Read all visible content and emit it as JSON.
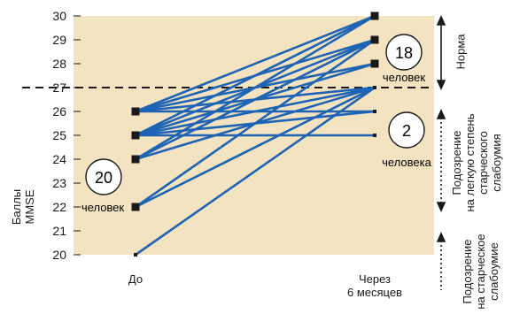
{
  "chart_data": {
    "type": "line",
    "ylabel": "Баллы MMSE",
    "ylim": [
      20,
      30
    ],
    "yticks": [
      20,
      21,
      22,
      23,
      24,
      25,
      26,
      27,
      28,
      29,
      30
    ],
    "categories": [
      "До",
      "Через\n6 месяцев"
    ],
    "threshold": 27,
    "series_color": "#1f64b4",
    "background_color": "#f3e3c1",
    "lines": [
      {
        "before": 26,
        "after": 30
      },
      {
        "before": 26,
        "after": 29
      },
      {
        "before": 26,
        "after": 28
      },
      {
        "before": 26,
        "after": 27
      },
      {
        "before": 26,
        "after": 26
      },
      {
        "before": 25,
        "after": 30
      },
      {
        "before": 25,
        "after": 29
      },
      {
        "before": 25,
        "after": 28
      },
      {
        "before": 25,
        "after": 27
      },
      {
        "before": 25,
        "after": 26
      },
      {
        "before": 25,
        "after": 25
      },
      {
        "before": 24,
        "after": 30
      },
      {
        "before": 24,
        "after": 29
      },
      {
        "before": 24,
        "after": 27
      },
      {
        "before": 22,
        "after": 29
      },
      {
        "before": 22,
        "after": 27
      },
      {
        "before": 20,
        "after": 27
      }
    ],
    "before_markers": [
      26,
      25,
      24,
      22,
      20
    ],
    "after_markers": [
      30,
      29,
      28,
      27,
      26,
      25
    ]
  },
  "annotations": {
    "before_count": {
      "number": "20",
      "unit": "человек"
    },
    "after_normal": {
      "number": "18",
      "unit": "человек"
    },
    "after_mild": {
      "number": "2",
      "unit": "человека"
    }
  },
  "right_labels": {
    "norm": "Норма",
    "mild": "Подозрение\nна легкую степень\nстарческого\nслабоумия",
    "dementia": "Подозрение\nна старческое\nслабоумие"
  }
}
